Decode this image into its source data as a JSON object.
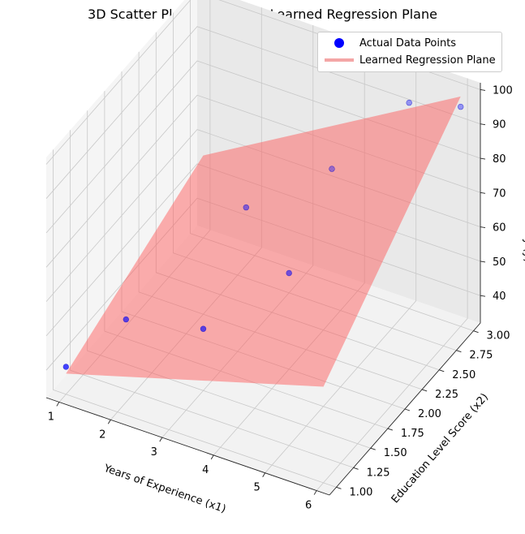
{
  "chart_data": {
    "type": "scatter",
    "title": "3D Scatter Plot of Data and Learned Regression Plane",
    "xlabel": "Years of Experience (x1)",
    "ylabel": "Education Level Score (x2)",
    "zlabel": "Salary (y)",
    "xlim": [
      0.75,
      6.25
    ],
    "ylim": [
      0.9,
      3.1
    ],
    "zlim": [
      32,
      102
    ],
    "x_ticks": [
      "1",
      "2",
      "3",
      "4",
      "5",
      "6"
    ],
    "y_ticks": [
      "1.00",
      "1.25",
      "1.50",
      "1.75",
      "2.00",
      "2.25",
      "2.50",
      "2.75",
      "3.00"
    ],
    "z_ticks": [
      "40",
      "50",
      "60",
      "70",
      "80",
      "90",
      "100"
    ],
    "grid": true,
    "legend_position": "top-right",
    "points": [
      {
        "x": 1.0,
        "y": 1.0,
        "z": 40
      },
      {
        "x": 1.5,
        "y": 1.5,
        "z": 45
      },
      {
        "x": 2.5,
        "y": 2.5,
        "z": 60
      },
      {
        "x": 3.0,
        "y": 1.5,
        "z": 50
      },
      {
        "x": 3.5,
        "y": 3.0,
        "z": 65
      },
      {
        "x": 4.0,
        "y": 2.0,
        "z": 60
      },
      {
        "x": 5.0,
        "y": 3.0,
        "z": 92
      },
      {
        "x": 6.0,
        "y": 3.0,
        "z": 96
      }
    ],
    "plane": {
      "x_range": [
        1,
        6
      ],
      "y_range": [
        1,
        3
      ],
      "z_corners": [
        [
          38,
          60
        ],
        [
          56,
          99
        ]
      ]
    },
    "series": [
      {
        "name": "Actual Data Points",
        "color": "#0000ff",
        "kind": "marker"
      },
      {
        "name": "Learned Regression Plane",
        "color": "#ff6666",
        "kind": "surface"
      }
    ]
  }
}
